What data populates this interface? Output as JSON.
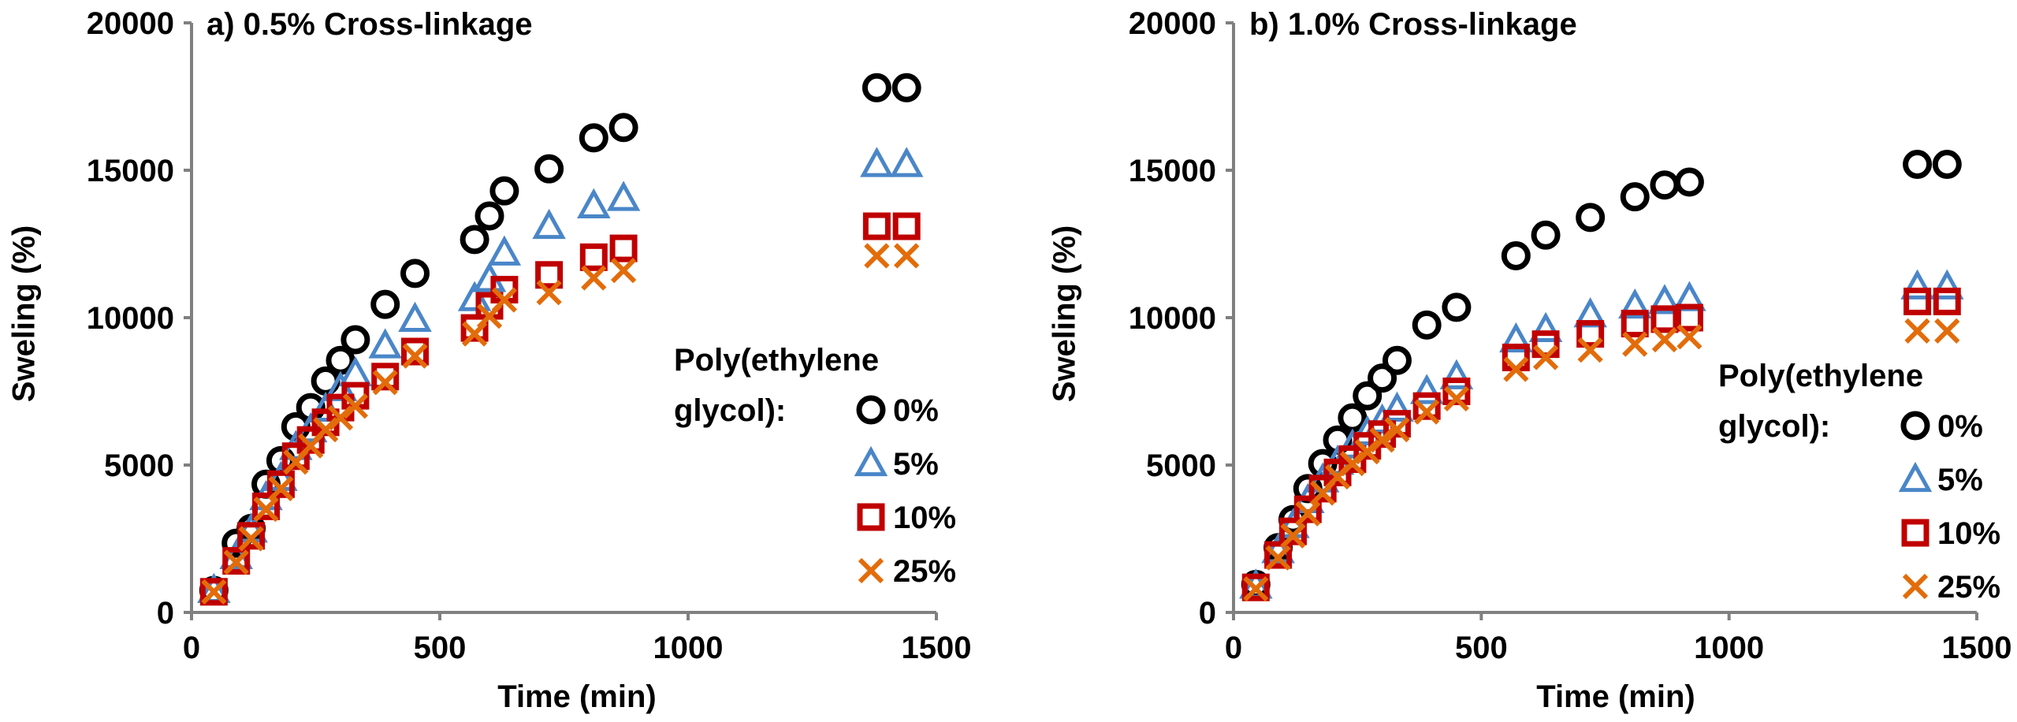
{
  "chart_data": [
    {
      "type": "scatter",
      "title": "a) 0.5% Cross-linkage",
      "xlabel": "Time (min)",
      "ylabel": "Sweling (%)",
      "xlim": [
        0,
        1500
      ],
      "ylim": [
        0,
        20000
      ],
      "x_ticks": [
        "0",
        "500",
        "1000",
        "1500"
      ],
      "y_ticks": [
        "0",
        "5000",
        "10000",
        "15000",
        "20000"
      ],
      "grid": false,
      "legend": {
        "title_lines": [
          "Poly(ethylene",
          "glycol):"
        ],
        "placement": "right"
      },
      "series": [
        {
          "name": "0%",
          "marker": "circle",
          "color": "#000000",
          "points": [
            [
              45,
              750
            ],
            [
              90,
              2350
            ],
            [
              120,
              2850
            ],
            [
              150,
              4350
            ],
            [
              180,
              5150
            ],
            [
              210,
              6300
            ],
            [
              240,
              6950
            ],
            [
              270,
              7850
            ],
            [
              300,
              8550
            ],
            [
              330,
              9250
            ],
            [
              390,
              10450
            ],
            [
              450,
              11500
            ],
            [
              570,
              12650
            ],
            [
              600,
              13450
            ],
            [
              630,
              14300
            ],
            [
              720,
              15050
            ],
            [
              810,
              16100
            ],
            [
              870,
              16450
            ],
            [
              1380,
              17800
            ],
            [
              1440,
              17800
            ]
          ]
        },
        {
          "name": "5%",
          "marker": "triangle",
          "color": "#4a86c8",
          "points": [
            [
              45,
              750
            ],
            [
              90,
              1900
            ],
            [
              120,
              2800
            ],
            [
              150,
              3900
            ],
            [
              180,
              4550
            ],
            [
              210,
              5600
            ],
            [
              240,
              6200
            ],
            [
              270,
              6900
            ],
            [
              300,
              7600
            ],
            [
              330,
              8100
            ],
            [
              390,
              9050
            ],
            [
              450,
              9950
            ],
            [
              570,
              10650
            ],
            [
              600,
              11300
            ],
            [
              630,
              12200
            ],
            [
              720,
              13100
            ],
            [
              810,
              13800
            ],
            [
              870,
              14050
            ],
            [
              1380,
              15200
            ],
            [
              1440,
              15200
            ]
          ]
        },
        {
          "name": "10%",
          "marker": "square",
          "color": "#c00000",
          "points": [
            [
              45,
              700
            ],
            [
              90,
              1750
            ],
            [
              120,
              2600
            ],
            [
              150,
              3600
            ],
            [
              180,
              4350
            ],
            [
              210,
              5300
            ],
            [
              240,
              5850
            ],
            [
              270,
              6450
            ],
            [
              300,
              6950
            ],
            [
              330,
              7350
            ],
            [
              390,
              8000
            ],
            [
              450,
              8850
            ],
            [
              570,
              9650
            ],
            [
              600,
              10400
            ],
            [
              630,
              10950
            ],
            [
              720,
              11450
            ],
            [
              810,
              12050
            ],
            [
              870,
              12350
            ],
            [
              1380,
              13100
            ],
            [
              1440,
              13100
            ]
          ]
        },
        {
          "name": "25%",
          "marker": "cross",
          "color": "#e36c0a",
          "points": [
            [
              45,
              700
            ],
            [
              90,
              1700
            ],
            [
              120,
              2500
            ],
            [
              150,
              3500
            ],
            [
              180,
              4200
            ],
            [
              210,
              5100
            ],
            [
              240,
              5650
            ],
            [
              270,
              6200
            ],
            [
              300,
              6600
            ],
            [
              330,
              7000
            ],
            [
              390,
              7800
            ],
            [
              450,
              8700
            ],
            [
              570,
              9450
            ],
            [
              600,
              10050
            ],
            [
              630,
              10600
            ],
            [
              720,
              10850
            ],
            [
              810,
              11350
            ],
            [
              870,
              11600
            ],
            [
              1380,
              12100
            ],
            [
              1440,
              12100
            ]
          ]
        }
      ]
    },
    {
      "type": "scatter",
      "title": "b) 1.0% Cross-linkage",
      "xlabel": "Time (min)",
      "ylabel": "Sweling (%)",
      "xlim": [
        0,
        1500
      ],
      "ylim": [
        0,
        20000
      ],
      "x_ticks": [
        "0",
        "500",
        "1000",
        "1500"
      ],
      "y_ticks": [
        "0",
        "5000",
        "10000",
        "15000",
        "20000"
      ],
      "grid": false,
      "legend": {
        "title_lines": [
          "Poly(ethylene",
          "glycol):"
        ],
        "placement": "right"
      },
      "series": [
        {
          "name": "0%",
          "marker": "circle",
          "color": "#000000",
          "points": [
            [
              45,
              950
            ],
            [
              90,
              2200
            ],
            [
              120,
              3150
            ],
            [
              150,
              4200
            ],
            [
              180,
              5050
            ],
            [
              210,
              5850
            ],
            [
              240,
              6600
            ],
            [
              270,
              7350
            ],
            [
              300,
              7950
            ],
            [
              330,
              8550
            ],
            [
              390,
              9750
            ],
            [
              450,
              10350
            ],
            [
              570,
              12100
            ],
            [
              630,
              12800
            ],
            [
              720,
              13400
            ],
            [
              810,
              14100
            ],
            [
              870,
              14500
            ],
            [
              920,
              14600
            ],
            [
              1380,
              15200
            ],
            [
              1440,
              15200
            ]
          ]
        },
        {
          "name": "5%",
          "marker": "triangle",
          "color": "#4a86c8",
          "points": [
            [
              45,
              900
            ],
            [
              90,
              2100
            ],
            [
              120,
              2950
            ],
            [
              150,
              3800
            ],
            [
              180,
              4500
            ],
            [
              210,
              5100
            ],
            [
              240,
              5650
            ],
            [
              270,
              6100
            ],
            [
              300,
              6500
            ],
            [
              330,
              6900
            ],
            [
              390,
              7500
            ],
            [
              450,
              8000
            ],
            [
              570,
              9250
            ],
            [
              630,
              9600
            ],
            [
              720,
              10100
            ],
            [
              810,
              10400
            ],
            [
              870,
              10550
            ],
            [
              920,
              10650
            ],
            [
              1380,
              11050
            ],
            [
              1440,
              11050
            ]
          ]
        },
        {
          "name": "10%",
          "marker": "square",
          "color": "#c00000",
          "points": [
            [
              45,
              850
            ],
            [
              90,
              1950
            ],
            [
              120,
              2750
            ],
            [
              150,
              3500
            ],
            [
              180,
              4200
            ],
            [
              210,
              4750
            ],
            [
              240,
              5200
            ],
            [
              270,
              5650
            ],
            [
              300,
              6050
            ],
            [
              330,
              6400
            ],
            [
              390,
              7000
            ],
            [
              450,
              7500
            ],
            [
              570,
              8650
            ],
            [
              630,
              9100
            ],
            [
              720,
              9450
            ],
            [
              810,
              9800
            ],
            [
              870,
              9950
            ],
            [
              920,
              10000
            ],
            [
              1380,
              10550
            ],
            [
              1440,
              10550
            ]
          ]
        },
        {
          "name": "25%",
          "marker": "cross",
          "color": "#e36c0a",
          "points": [
            [
              45,
              800
            ],
            [
              90,
              1850
            ],
            [
              120,
              2600
            ],
            [
              150,
              3350
            ],
            [
              180,
              4050
            ],
            [
              210,
              4600
            ],
            [
              240,
              5050
            ],
            [
              270,
              5450
            ],
            [
              300,
              5850
            ],
            [
              330,
              6200
            ],
            [
              390,
              6800
            ],
            [
              450,
              7250
            ],
            [
              570,
              8250
            ],
            [
              630,
              8650
            ],
            [
              720,
              8900
            ],
            [
              810,
              9100
            ],
            [
              870,
              9250
            ],
            [
              920,
              9350
            ],
            [
              1380,
              9550
            ],
            [
              1440,
              9550
            ]
          ]
        }
      ]
    }
  ]
}
